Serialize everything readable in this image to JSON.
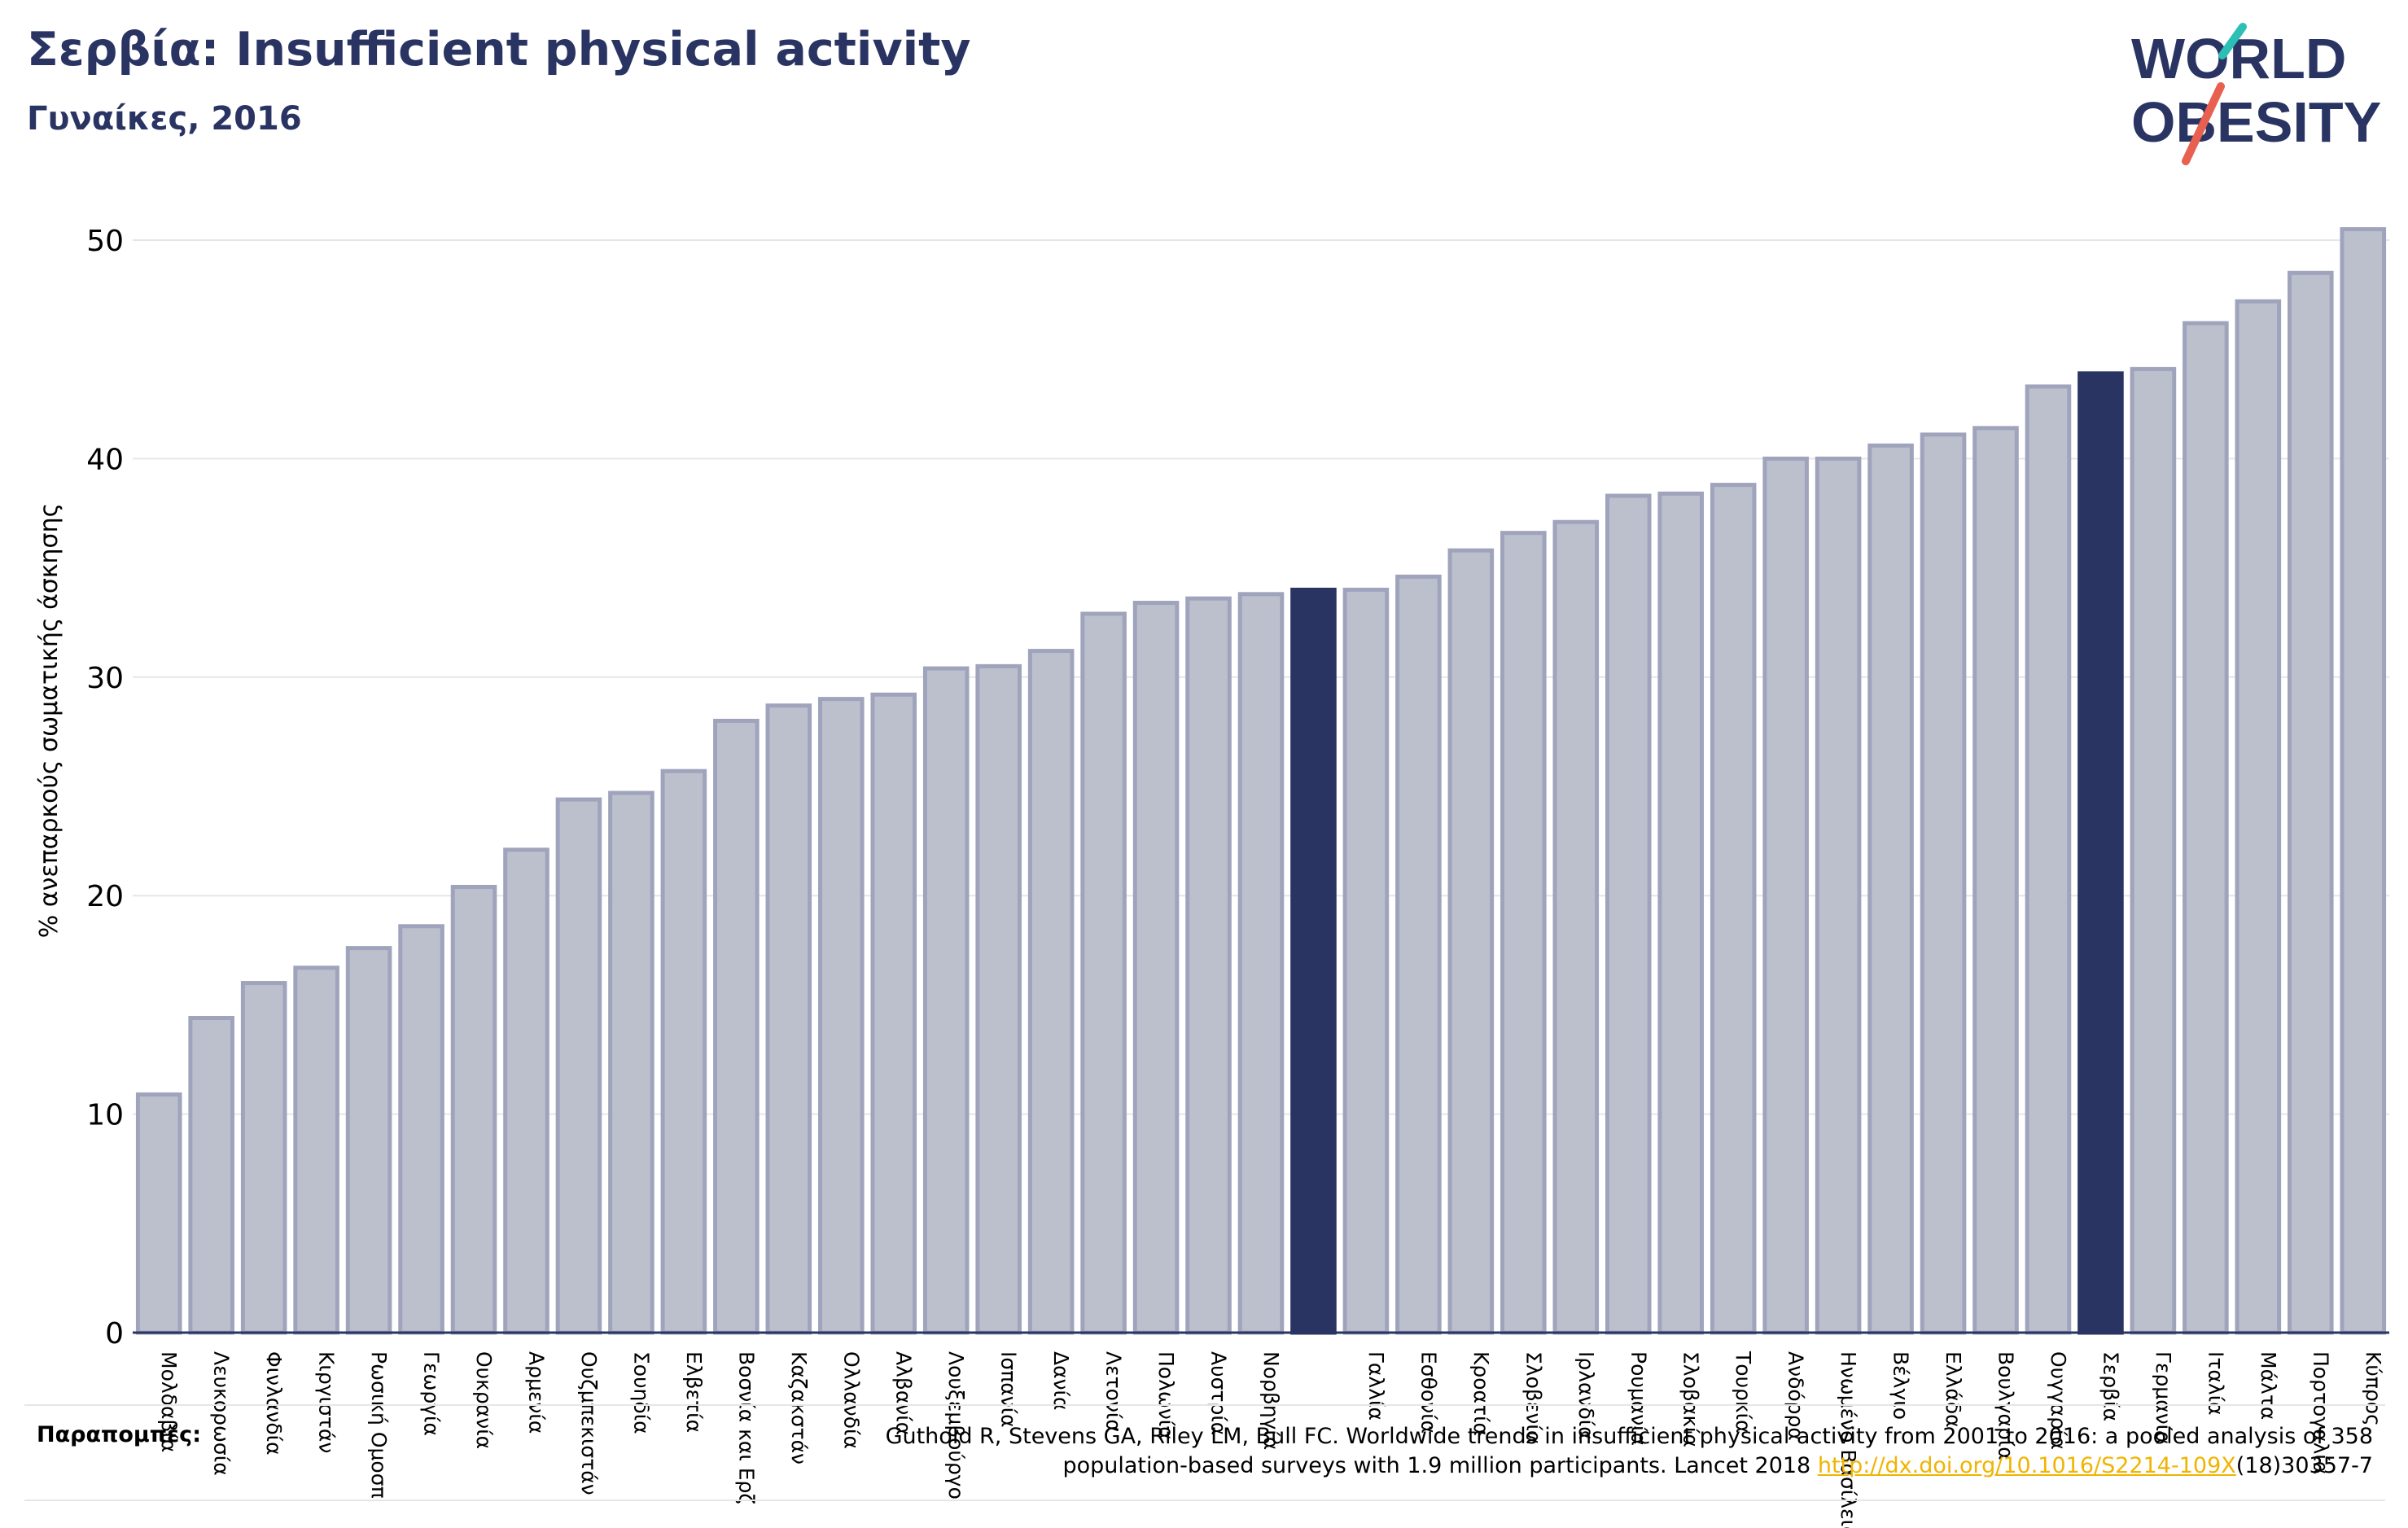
{
  "title": "Σερβία: Insufficient physical activity",
  "subtitle": "Γυναίκες, 2016",
  "logo": {
    "line1": "WORLD",
    "line2": "OBESITY"
  },
  "references": {
    "label": "Παραπομπές:",
    "text_line1": "Guthold R, Stevens GA, Riley LM, Bull FC. Worldwide trends in insufficient physical activity from 2001 to 2016: a pooled analysis of 358",
    "text_line2_prefix": "population-based surveys with 1.9 million participants. Lancet 2018 ",
    "link": "http://dx.doi.org/10.1016/S2214-109X",
    "text_line2_suffix": "(18)30357-7"
  },
  "colors": {
    "bar": "#bcc0cd",
    "bar_edge": "#9fa4bc",
    "highlight": "#2a3463",
    "title": "#2a3463",
    "logo_teal": "#2cbfb5",
    "logo_coral": "#e8604f"
  },
  "chart_data": {
    "type": "bar",
    "ylabel": "% ανεπαρκούς σωματικής άσκησης",
    "ylim": [
      0,
      52
    ],
    "yticks": [
      0,
      10,
      20,
      30,
      40,
      50
    ],
    "grid": true,
    "categories": [
      "Μολδαβία",
      "Λευκορωσία",
      "Φινλανδία",
      "Κιργιστάν",
      "Ρωσική Ομοσπ",
      "Γεωργία",
      "Ουκρανία",
      "Αρμενία",
      "Ουζμπεκιστάν",
      "Σουηδία",
      "Ελβετία",
      "Βοσνία και Ερζ",
      "Καζακστάν",
      "Ολλανδία",
      "Αλβανία",
      "Λουξεμβούργο",
      "Ισπανία",
      "Δανία",
      "Λετονία",
      "Πολωνία",
      "Αυστρία",
      "Νορβηγία",
      "",
      "Γαλλία",
      "Εσθονία",
      "Κροατία",
      "Σλοβενία",
      "Ιρλανδία",
      "Ρουμανία",
      "Σλοβακία",
      "Τουρκία",
      "Ανδόρρα",
      "Ηνωμένο Βασίλειο",
      "Βέλγιο",
      "Ελλάδα",
      "Βουλγαρία",
      "Ουγγαρία",
      "Σερβία",
      "Γερμανία",
      "Ιταλία",
      "Μάλτα",
      "Πορτογαλία",
      "Κύπρος"
    ],
    "values": [
      10.9,
      14.4,
      16.0,
      16.7,
      17.6,
      18.6,
      20.4,
      22.1,
      24.4,
      24.7,
      25.7,
      28.0,
      28.7,
      29.0,
      29.2,
      30.4,
      30.5,
      31.2,
      32.9,
      33.4,
      33.6,
      33.8,
      34.0,
      34.0,
      34.6,
      35.8,
      36.6,
      37.1,
      38.3,
      38.4,
      38.8,
      40.0,
      40.0,
      40.6,
      41.1,
      41.4,
      43.3,
      43.9,
      44.1,
      46.2,
      47.2,
      48.5,
      50.5
    ],
    "highlighted": [
      "",
      "Σερβία"
    ]
  }
}
